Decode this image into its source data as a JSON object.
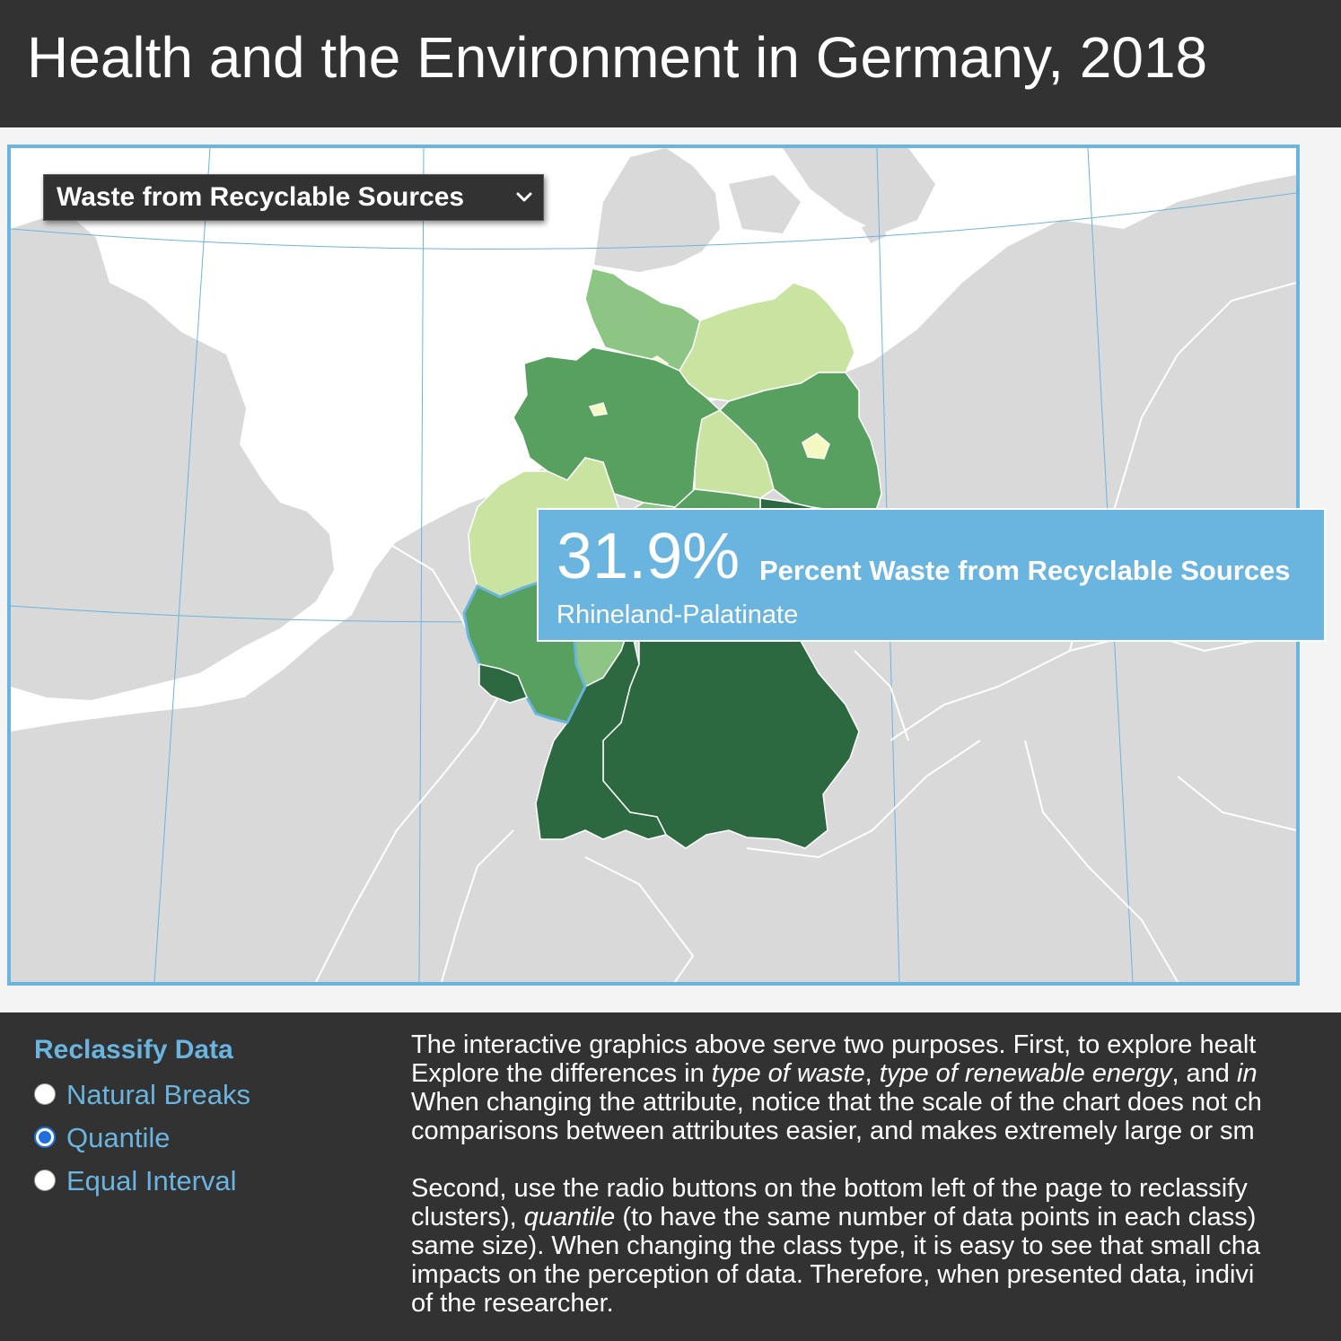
{
  "header": {
    "title": "Health and the Environment in Germany, 2018"
  },
  "attribute_select": {
    "value": "Waste from Recyclable Sources"
  },
  "info_label": {
    "value": "31.9%",
    "attribute": "Percent Waste from Recyclable Sources",
    "region": "Rhineland-Palatinate"
  },
  "map": {
    "highlighted_region": "Rhineland-Palatinate",
    "colors": {
      "class1": "#f4f9c2",
      "class2": "#c9e4a1",
      "class3": "#8dc585",
      "class4": "#58a060",
      "class5": "#2c6840",
      "land": "#d9d9d9",
      "water": "#ffffff",
      "highlight": "#6ab4e0"
    }
  },
  "reclassify": {
    "title": "Reclassify Data",
    "options": [
      {
        "label": "Natural Breaks",
        "checked": false
      },
      {
        "label": "Quantile",
        "checked": true
      },
      {
        "label": "Equal Interval",
        "checked": false
      }
    ]
  },
  "description": {
    "p1": [
      {
        "text": "The interactive graphics above serve two purposes. First, to explore healt"
      },
      {
        "text": "Explore the differences in "
      },
      {
        "text": "type of waste",
        "italic": true
      },
      {
        "text": ", "
      },
      {
        "text": "type of renewable energy",
        "italic": true
      },
      {
        "text": ", and "
      },
      {
        "text": "in",
        "italic": true
      },
      {
        "text": "When changing the attribute, notice that the scale of the chart does not ch"
      },
      {
        "text": "comparisons between attributes easier, and makes extremely large or sm"
      }
    ],
    "p2": [
      {
        "text": "Second, use the radio buttons on the bottom left of the page to reclassify"
      },
      {
        "text": "clusters), "
      },
      {
        "text": "quantile",
        "italic": true
      },
      {
        "text": " (to have the same number of data points in each class)"
      },
      {
        "text": "same size). When changing the class type, it is easy to see that small cha"
      },
      {
        "text": "impacts on the perception of data. Therefore, when presented data, indivi"
      },
      {
        "text": "of the researcher."
      }
    ]
  }
}
